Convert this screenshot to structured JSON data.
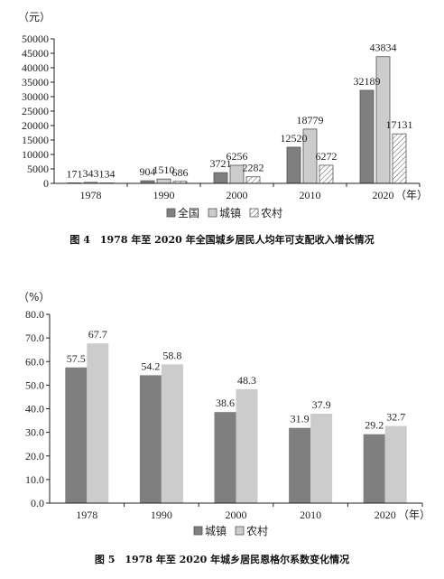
{
  "chart_data": [
    {
      "type": "bar",
      "unit": "（元）",
      "year_suffix": "（年）",
      "categories": [
        "1978",
        "1990",
        "2000",
        "2010",
        "2020"
      ],
      "series": [
        {
          "name": "全国",
          "values": [
            171,
            904,
            3721,
            12520,
            32189
          ],
          "color": "#7f7f7f",
          "pattern": "solid"
        },
        {
          "name": "城镇",
          "values": [
            343,
            1510,
            6256,
            18779,
            43834
          ],
          "color": "#cccccc",
          "pattern": "solid"
        },
        {
          "name": "农村",
          "values": [
            134,
            686,
            2282,
            6272,
            17131
          ],
          "color": "#ffffff",
          "pattern": "hatch"
        }
      ],
      "yticks": [
        "0",
        "5000",
        "10000",
        "15000",
        "20000",
        "25000",
        "30000",
        "35000",
        "40000",
        "45000",
        "50000"
      ],
      "ylim": [
        0,
        50000
      ],
      "caption": "图 4　1978 年至 2020 年全国城乡居民人均年可支配收入增长情况"
    },
    {
      "type": "bar",
      "unit": "（%）",
      "year_suffix": "（年）",
      "categories": [
        "1978",
        "1990",
        "2000",
        "2010",
        "2020"
      ],
      "series": [
        {
          "name": "城镇",
          "values": [
            57.5,
            54.2,
            38.6,
            31.9,
            29.2
          ],
          "color": "#7f7f7f"
        },
        {
          "name": "农村",
          "values": [
            67.7,
            58.8,
            48.3,
            37.9,
            32.7
          ],
          "color": "#cccccc"
        }
      ],
      "yticks": [
        "0.0",
        "10.0",
        "20.0",
        "30.0",
        "40.0",
        "50.0",
        "60.0",
        "70.0",
        "80.0"
      ],
      "ylim": [
        0,
        80
      ],
      "caption": "图 5　1978 年至 2020 年城乡居民恩格尔系数变化情况"
    }
  ]
}
